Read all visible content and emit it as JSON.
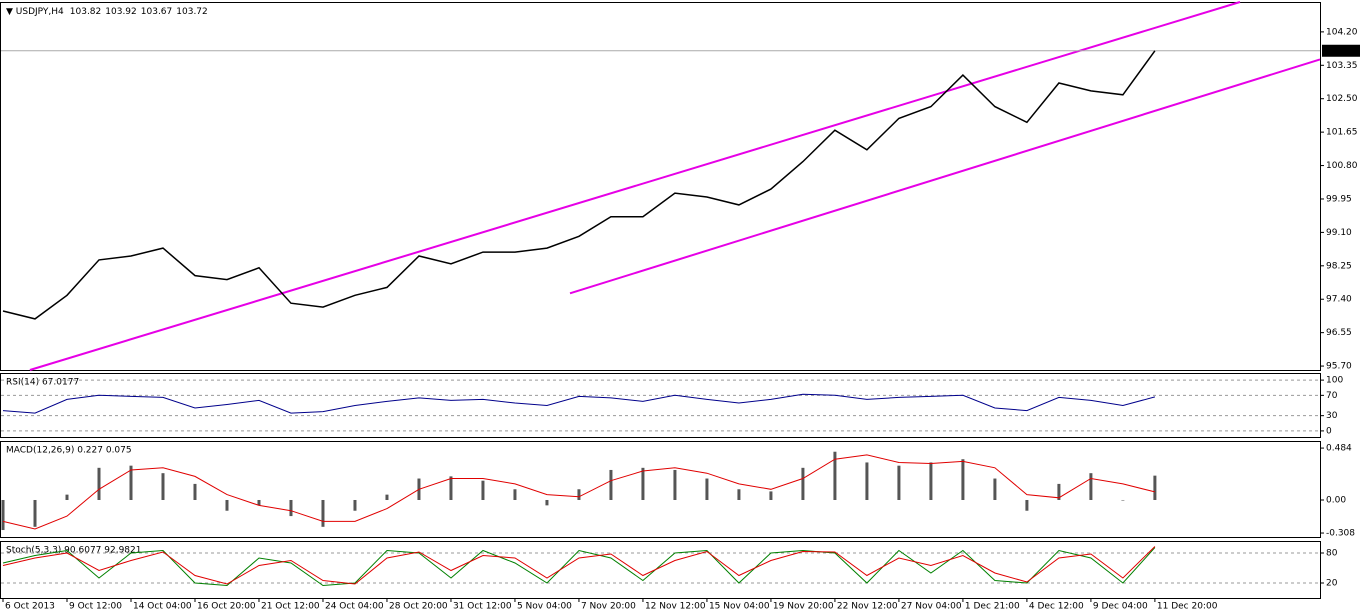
{
  "chart_data": [
    {
      "type": "line",
      "symbol": "USDJPY,H4",
      "ohlc": [
        103.82,
        103.92,
        103.67,
        103.72
      ],
      "last": 103.72,
      "categories": [
        "6 Oct 2013",
        null,
        "9 Oct 12:00",
        null,
        "14 Oct 04:00",
        null,
        "16 Oct 20:00",
        null,
        "21 Oct 12:00",
        null,
        "24 Oct 04:00",
        null,
        "28 Oct 20:00",
        null,
        "31 Oct 12:00",
        null,
        "5 Nov 04:00",
        null,
        "7 Nov 20:00",
        null,
        "12 Nov 12:00",
        null,
        "15 Nov 04:00",
        null,
        "19 Nov 20:00",
        null,
        "22 Nov 12:00",
        null,
        "27 Nov 04:00",
        null,
        "1 Dec 21:00",
        null,
        "4 Dec 12:00",
        null,
        "9 Dec 04:00",
        null,
        "11 Dec 20:00"
      ],
      "series": [
        {
          "color": "#000000",
          "values": [
            97.1,
            96.9,
            97.5,
            98.4,
            98.5,
            98.7,
            98.0,
            97.9,
            98.2,
            97.3,
            97.2,
            97.5,
            97.7,
            98.5,
            98.3,
            98.6,
            98.6,
            98.7,
            99.0,
            99.5,
            99.5,
            100.1,
            100.0,
            99.8,
            100.2,
            100.9,
            101.7,
            101.2,
            102.0,
            102.3,
            103.1,
            102.3,
            101.9,
            102.9,
            102.7,
            102.6,
            103.72
          ]
        }
      ],
      "channel": [
        {
          "color": "#e600e6",
          "x": [
            0.84,
            38.66
          ],
          "y": [
            95.6,
            104.96
          ]
        },
        {
          "color": "#e600e6",
          "x": [
            17.72,
            41.16
          ],
          "y": [
            97.55,
            103.5
          ]
        }
      ],
      "xlim": [
        -0.094,
        41.16
      ],
      "ylim": [
        95.6,
        104.96
      ],
      "yticks": [
        {
          "value": 104.2,
          "label": "104.20"
        },
        103.35,
        {
          "value": 102.5,
          "label": "102.50"
        },
        101.65,
        {
          "value": 100.8,
          "label": "100.80"
        },
        99.95,
        {
          "value": 99.1,
          "label": "99.10"
        },
        98.25,
        {
          "value": 97.4,
          "label": "97.40"
        },
        96.55,
        {
          "value": 95.7,
          "label": "95.70"
        }
      ],
      "grid": false
    },
    {
      "type": "line",
      "title": "RSI(14) 67.0177",
      "series": [
        {
          "color": "#00008b",
          "values": [
            40,
            35,
            62,
            70,
            68,
            66,
            45,
            52,
            60,
            35,
            38,
            50,
            58,
            65,
            60,
            62,
            55,
            50,
            68,
            65,
            58,
            70,
            62,
            55,
            62,
            72,
            70,
            62,
            66,
            68,
            70,
            45,
            40,
            66,
            60,
            50,
            67
          ]
        }
      ],
      "ylim": [
        -12,
        114
      ],
      "yticks": [
        100,
        70,
        30,
        0
      ],
      "grid": true
    },
    {
      "type": "bar",
      "title": "MACD(12,26,9) 0.227 0.075",
      "color": "#555555",
      "values": [
        -0.28,
        -0.25,
        0.05,
        0.3,
        0.32,
        0.25,
        0.15,
        -0.1,
        -0.05,
        -0.15,
        -0.25,
        -0.1,
        0.05,
        0.2,
        0.22,
        0.18,
        0.1,
        -0.05,
        0.1,
        0.28,
        0.3,
        0.28,
        0.2,
        0.1,
        0.08,
        0.3,
        0.45,
        0.35,
        0.32,
        0.35,
        0.38,
        0.2,
        -0.1,
        0.15,
        0.25,
        0.0,
        0.227
      ],
      "series": [
        {
          "color": "#e00000",
          "values": [
            -0.2,
            -0.27,
            -0.15,
            0.1,
            0.28,
            0.3,
            0.22,
            0.05,
            -0.05,
            -0.1,
            -0.2,
            -0.2,
            -0.08,
            0.1,
            0.2,
            0.2,
            0.15,
            0.05,
            0.03,
            0.18,
            0.27,
            0.3,
            0.25,
            0.15,
            0.1,
            0.2,
            0.38,
            0.42,
            0.35,
            0.34,
            0.36,
            0.3,
            0.05,
            0.02,
            0.2,
            0.15,
            0.075
          ]
        }
      ],
      "ylim": [
        -0.345,
        0.55
      ],
      "yticks": [
        0.484,
        {
          "value": 0,
          "label": "0.00"
        },
        -0.308
      ],
      "grid": false
    },
    {
      "type": "line",
      "title": "Stoch(5,3,3) 90.6077 92.9821",
      "series": [
        {
          "color": "#008000",
          "values": [
            60,
            75,
            85,
            30,
            80,
            85,
            20,
            15,
            70,
            60,
            15,
            20,
            85,
            80,
            30,
            85,
            60,
            20,
            85,
            70,
            25,
            80,
            85,
            20,
            80,
            85,
            80,
            20,
            85,
            40,
            85,
            25,
            20,
            85,
            70,
            20,
            91
          ]
        },
        {
          "color": "#e00000",
          "values": [
            55,
            70,
            80,
            45,
            65,
            82,
            35,
            18,
            55,
            65,
            25,
            18,
            70,
            82,
            45,
            75,
            70,
            30,
            70,
            78,
            35,
            65,
            83,
            35,
            65,
            83,
            82,
            35,
            70,
            55,
            75,
            40,
            22,
            70,
            78,
            30,
            93
          ]
        }
      ],
      "ylim": [
        -10,
        104
      ],
      "yticks": [
        80,
        20
      ],
      "grid": true
    }
  ]
}
